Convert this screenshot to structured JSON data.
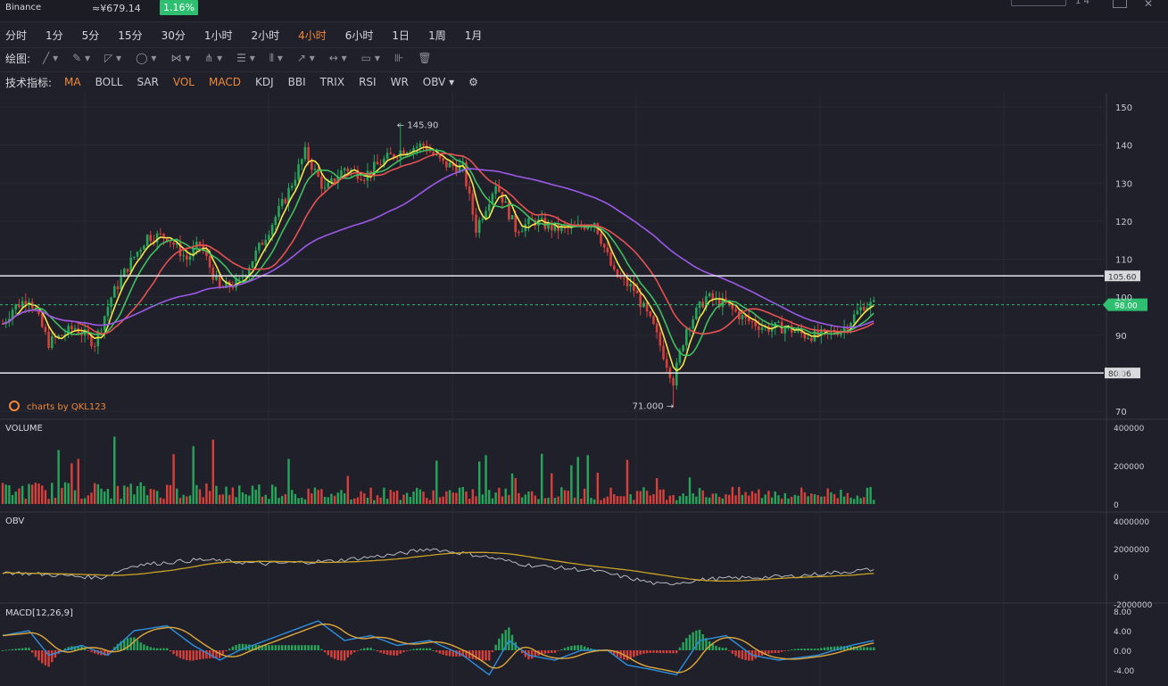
{
  "header": {
    "exchange": "Binance",
    "price": "≈¥679.14",
    "change": "1.16%",
    "right_text": "1 4"
  },
  "timeframes": [
    "分时",
    "1分",
    "5分",
    "15分",
    "30分",
    "1小时",
    "2小时",
    "4小时",
    "6小时",
    "1日",
    "1周",
    "1月"
  ],
  "active_timeframe": "4小时",
  "drawing_label": "绘图:",
  "drawing_tools": [
    "line-tool-icon",
    "pencil-tool-icon",
    "trend-tool-icon",
    "circle-tool-icon",
    "fork-tool-icon",
    "pitchfork-tool-icon",
    "fib-tool-icon",
    "gann-tool-icon",
    "arrow-tool-icon",
    "range-tool-icon",
    "comment-tool-icon",
    "measure-tool-icon",
    "trash-icon"
  ],
  "indicators_label": "技术指标:",
  "indicators": [
    {
      "name": "MA",
      "active": true
    },
    {
      "name": "BOLL",
      "active": false
    },
    {
      "name": "SAR",
      "active": false
    },
    {
      "name": "VOL",
      "active": true
    },
    {
      "name": "MACD",
      "active": true
    },
    {
      "name": "KDJ",
      "active": false
    },
    {
      "name": "BBI",
      "active": false
    },
    {
      "name": "TRIX",
      "active": false
    },
    {
      "name": "RSI",
      "active": false
    },
    {
      "name": "WR",
      "active": false
    },
    {
      "name": "OBV",
      "active": false
    }
  ],
  "colors": {
    "up": "#26a65b",
    "down": "#d8403c",
    "ma1": "#f4e64a",
    "ma2": "#3fbf5f",
    "ma3": "#e65252",
    "ma4": "#9b59e8",
    "obv": "#b8bac0",
    "obvma": "#c9a227",
    "dif": "#2d8fe0",
    "dea": "#e0a83c",
    "accent": "#f0873a",
    "lastprice": "#2fbf71"
  },
  "chart_data": [
    {
      "type": "candlestick",
      "panel": "main",
      "ylim": [
        70,
        150
      ],
      "yticks": [
        70,
        80,
        90,
        100,
        110,
        120,
        130,
        140,
        150
      ],
      "ma_series": [
        "MA short",
        "MA medium",
        "MA long",
        "MA longest"
      ],
      "keypoints": [
        [
          0,
          93
        ],
        [
          3,
          97
        ],
        [
          8,
          100
        ],
        [
          14,
          88
        ],
        [
          22,
          92
        ],
        [
          28,
          88
        ],
        [
          33,
          100
        ],
        [
          38,
          108
        ],
        [
          44,
          116
        ],
        [
          50,
          116
        ],
        [
          56,
          110
        ],
        [
          60,
          114
        ],
        [
          66,
          102
        ],
        [
          72,
          104
        ],
        [
          78,
          113
        ],
        [
          86,
          126
        ],
        [
          92,
          138
        ],
        [
          98,
          128
        ],
        [
          104,
          134
        ],
        [
          110,
          132
        ],
        [
          116,
          136
        ],
        [
          122,
          139
        ],
        [
          128,
          140
        ],
        [
          134,
          135
        ],
        [
          140,
          134
        ],
        [
          144,
          118
        ],
        [
          150,
          130
        ],
        [
          156,
          118
        ],
        [
          162,
          120
        ],
        [
          168,
          118
        ],
        [
          174,
          118
        ],
        [
          180,
          120
        ],
        [
          186,
          106
        ],
        [
          192,
          102
        ],
        [
          198,
          92
        ],
        [
          204,
          78
        ],
        [
          208,
          92
        ],
        [
          214,
          100
        ],
        [
          220,
          98
        ],
        [
          226,
          94
        ],
        [
          232,
          92
        ],
        [
          238,
          92
        ],
        [
          244,
          90
        ],
        [
          250,
          90
        ],
        [
          256,
          92
        ],
        [
          262,
          98
        ],
        [
          265,
          98
        ]
      ],
      "candle_count": 266,
      "high_annotation": {
        "value": 145.9,
        "label": "145.90"
      },
      "low_annotation": {
        "value": 71.0,
        "label": "71.000"
      },
      "horizontal_lines": [
        {
          "value": 105.6,
          "label": "105.60"
        },
        {
          "value": 80.06,
          "label": "80.06"
        }
      ],
      "last_price": {
        "value": 98.0,
        "label": "98.00"
      },
      "watermark": "charts by QKL123"
    },
    {
      "type": "bar",
      "panel": "volume",
      "title": "VOLUME",
      "ylim": [
        0,
        400000
      ],
      "yticks": [
        0,
        200000,
        400000
      ],
      "yticklabels": [
        "0",
        "200000",
        "400000"
      ]
    },
    {
      "type": "line",
      "panel": "obv",
      "title": "OBV",
      "ylim": [
        -2000000,
        4000000
      ],
      "yticks": [
        -2000000,
        0,
        2000000,
        4000000
      ],
      "yticklabels": [
        "-2000000",
        "0",
        "2000000",
        "4000000"
      ],
      "keypoints": [
        [
          0,
          300000
        ],
        [
          15,
          100000
        ],
        [
          30,
          -100000
        ],
        [
          40,
          800000
        ],
        [
          60,
          1200000
        ],
        [
          80,
          900000
        ],
        [
          100,
          1100000
        ],
        [
          120,
          1600000
        ],
        [
          130,
          2000000
        ],
        [
          145,
          1500000
        ],
        [
          160,
          800000
        ],
        [
          180,
          400000
        ],
        [
          200,
          -600000
        ],
        [
          215,
          -200000
        ],
        [
          240,
          0
        ],
        [
          265,
          500000
        ]
      ]
    },
    {
      "type": "line",
      "panel": "macd",
      "title": "MACD[12,26,9]",
      "ylim": [
        -6,
        8
      ],
      "yticks": [
        -4,
        0,
        4,
        8
      ],
      "yticklabels": [
        "-4.00",
        "0.00",
        "4.00",
        "8.00"
      ],
      "series": [
        "DIF",
        "DEA"
      ],
      "keypoints": [
        [
          0,
          3
        ],
        [
          8,
          4
        ],
        [
          14,
          -1
        ],
        [
          24,
          1
        ],
        [
          32,
          -1
        ],
        [
          40,
          4
        ],
        [
          50,
          5
        ],
        [
          58,
          1
        ],
        [
          66,
          -2
        ],
        [
          72,
          0
        ],
        [
          80,
          2
        ],
        [
          88,
          4
        ],
        [
          96,
          6
        ],
        [
          104,
          2
        ],
        [
          112,
          3
        ],
        [
          120,
          1
        ],
        [
          130,
          2
        ],
        [
          140,
          -1
        ],
        [
          148,
          -5
        ],
        [
          154,
          2
        ],
        [
          160,
          -1
        ],
        [
          168,
          -2
        ],
        [
          176,
          0
        ],
        [
          184,
          0
        ],
        [
          190,
          -3
        ],
        [
          198,
          -4
        ],
        [
          205,
          -5
        ],
        [
          212,
          2
        ],
        [
          220,
          3
        ],
        [
          228,
          -1
        ],
        [
          236,
          -2
        ],
        [
          248,
          -1
        ],
        [
          258,
          1
        ],
        [
          265,
          2
        ]
      ]
    }
  ]
}
